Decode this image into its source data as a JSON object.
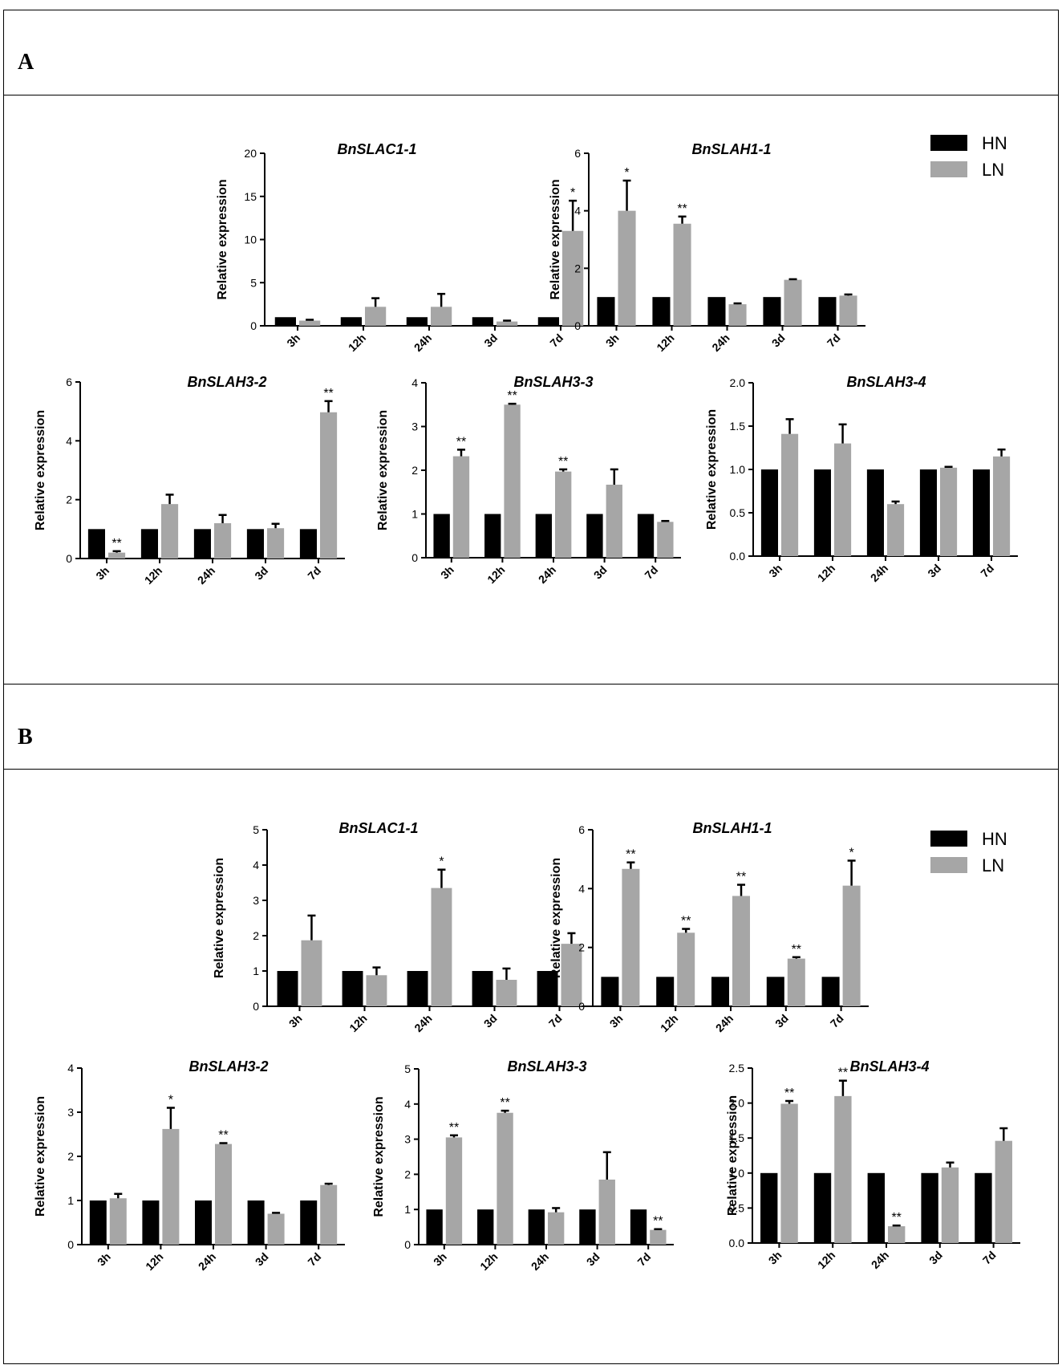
{
  "panels": [
    {
      "label": "A"
    },
    {
      "label": "B"
    }
  ],
  "legend": {
    "A": [
      {
        "name": "HN",
        "color": "#000000"
      },
      {
        "name": "LN",
        "color": "#a6a6a6"
      }
    ],
    "B": [
      {
        "name": "HN",
        "color": "#000000"
      },
      {
        "name": "LN",
        "color": "#a6a6a6"
      }
    ]
  },
  "chart_data": [
    {
      "panel": "A",
      "type": "bar",
      "title": "BnSLAC1-1",
      "xlabel": "",
      "ylabel": "Relative expression",
      "categories": [
        "3h",
        "12h",
        "24h",
        "3d",
        "7d"
      ],
      "ylim": [
        0,
        20
      ],
      "yticks": [
        "0",
        "5",
        "10",
        "15",
        "20"
      ],
      "series": [
        {
          "name": "HN",
          "color": "#000000",
          "values": [
            1,
            1,
            1,
            1,
            1
          ],
          "errors": [
            0,
            0,
            0,
            0,
            0
          ]
        },
        {
          "name": "LN",
          "color": "#a6a6a6",
          "values": [
            0.6,
            2.2,
            2.2,
            0.5,
            11.0
          ],
          "errors": [
            0.1,
            1.0,
            1.5,
            0.1,
            3.5
          ]
        }
      ],
      "annotations": [
        "",
        "",
        "",
        "",
        "*"
      ]
    },
    {
      "panel": "A",
      "type": "bar",
      "title": "BnSLAH1-1",
      "xlabel": "",
      "ylabel": "Relative expression",
      "categories": [
        "3h",
        "12h",
        "24h",
        "3d",
        "7d"
      ],
      "ylim": [
        0,
        6
      ],
      "yticks": [
        "0",
        "2",
        "4",
        "6"
      ],
      "series": [
        {
          "name": "HN",
          "color": "#000000",
          "values": [
            1,
            1,
            1,
            1,
            1
          ],
          "errors": [
            0,
            0,
            0,
            0,
            0
          ]
        },
        {
          "name": "LN",
          "color": "#a6a6a6",
          "values": [
            4.0,
            3.55,
            0.75,
            1.6,
            1.05
          ],
          "errors": [
            1.05,
            0.25,
            0.03,
            0.02,
            0.04
          ]
        }
      ],
      "annotations": [
        "*",
        "**",
        "",
        "",
        ""
      ]
    },
    {
      "panel": "A",
      "type": "bar",
      "title": "BnSLAH3-2",
      "xlabel": "",
      "ylabel": "Relative expression",
      "categories": [
        "3h",
        "12h",
        "24h",
        "3d",
        "7d"
      ],
      "ylim": [
        0,
        6
      ],
      "yticks": [
        "0",
        "2",
        "4",
        "6"
      ],
      "series": [
        {
          "name": "HN",
          "color": "#000000",
          "values": [
            1,
            1,
            1,
            1,
            1
          ],
          "errors": [
            0,
            0,
            0,
            0,
            0
          ]
        },
        {
          "name": "LN",
          "color": "#a6a6a6",
          "values": [
            0.2,
            1.85,
            1.2,
            1.03,
            4.97
          ],
          "errors": [
            0.05,
            0.32,
            0.28,
            0.15,
            0.38
          ]
        }
      ],
      "annotations": [
        "**",
        "",
        "",
        "",
        "**"
      ]
    },
    {
      "panel": "A",
      "type": "bar",
      "title": "BnSLAH3-3",
      "xlabel": "",
      "ylabel": "Relative expression",
      "categories": [
        "3h",
        "12h",
        "24h",
        "3d",
        "7d"
      ],
      "ylim": [
        0,
        4
      ],
      "yticks": [
        "0",
        "1",
        "2",
        "3",
        "4"
      ],
      "series": [
        {
          "name": "HN",
          "color": "#000000",
          "values": [
            1,
            1,
            1,
            1,
            1
          ],
          "errors": [
            0,
            0,
            0,
            0,
            0
          ]
        },
        {
          "name": "LN",
          "color": "#a6a6a6",
          "values": [
            2.32,
            3.5,
            1.97,
            1.67,
            0.82
          ],
          "errors": [
            0.15,
            0.02,
            0.05,
            0.35,
            0.02
          ]
        }
      ],
      "annotations": [
        "**",
        "**",
        "**",
        "",
        ""
      ]
    },
    {
      "panel": "A",
      "type": "bar",
      "title": "BnSLAH3-4",
      "xlabel": "",
      "ylabel": "Relative expression",
      "categories": [
        "3h",
        "12h",
        "24h",
        "3d",
        "7d"
      ],
      "ylim": [
        0,
        2.0
      ],
      "yticks": [
        "0.0",
        "0.5",
        "1.0",
        "1.5",
        "2.0"
      ],
      "series": [
        {
          "name": "HN",
          "color": "#000000",
          "values": [
            1,
            1,
            1,
            1,
            1
          ],
          "errors": [
            0,
            0,
            0,
            0,
            0
          ]
        },
        {
          "name": "LN",
          "color": "#a6a6a6",
          "values": [
            1.41,
            1.3,
            0.6,
            1.02,
            1.15
          ],
          "errors": [
            0.17,
            0.22,
            0.03,
            0.01,
            0.08
          ]
        }
      ],
      "annotations": [
        "",
        "",
        "",
        "",
        ""
      ]
    },
    {
      "panel": "B",
      "type": "bar",
      "title": "BnSLAC1-1",
      "xlabel": "",
      "ylabel": "Relative expression",
      "categories": [
        "3h",
        "12h",
        "24h",
        "3d",
        "7d"
      ],
      "ylim": [
        0,
        5
      ],
      "yticks": [
        "0",
        "1",
        "2",
        "3",
        "4",
        "5"
      ],
      "series": [
        {
          "name": "HN",
          "color": "#000000",
          "values": [
            1,
            1,
            1,
            1,
            1
          ],
          "errors": [
            0,
            0,
            0,
            0,
            0
          ]
        },
        {
          "name": "LN",
          "color": "#a6a6a6",
          "values": [
            1.87,
            0.88,
            3.35,
            0.75,
            1.77
          ],
          "errors": [
            0.7,
            0.22,
            0.52,
            0.32,
            0.3
          ]
        }
      ],
      "annotations": [
        "",
        "",
        "*",
        "",
        ""
      ]
    },
    {
      "panel": "B",
      "type": "bar",
      "title": "BnSLAH1-1",
      "xlabel": "",
      "ylabel": "Relative expression",
      "categories": [
        "3h",
        "12h",
        "24h",
        "3d",
        "7d"
      ],
      "ylim": [
        0,
        6
      ],
      "yticks": [
        "0",
        "2",
        "4",
        "6"
      ],
      "series": [
        {
          "name": "HN",
          "color": "#000000",
          "values": [
            1,
            1,
            1,
            1,
            1
          ],
          "errors": [
            0,
            0,
            0,
            0,
            0
          ]
        },
        {
          "name": "LN",
          "color": "#a6a6a6",
          "values": [
            4.67,
            2.5,
            3.75,
            1.62,
            4.1
          ],
          "errors": [
            0.22,
            0.13,
            0.38,
            0.05,
            0.85
          ]
        }
      ],
      "annotations": [
        "**",
        "**",
        "**",
        "**",
        "*"
      ]
    },
    {
      "panel": "B",
      "type": "bar",
      "title": "BnSLAH3-2",
      "xlabel": "",
      "ylabel": "Relative expression",
      "categories": [
        "3h",
        "12h",
        "24h",
        "3d",
        "7d"
      ],
      "ylim": [
        0,
        4
      ],
      "yticks": [
        "0",
        "1",
        "2",
        "3",
        "4"
      ],
      "series": [
        {
          "name": "HN",
          "color": "#000000",
          "values": [
            1,
            1,
            1,
            1,
            1
          ],
          "errors": [
            0,
            0,
            0,
            0,
            0
          ]
        },
        {
          "name": "LN",
          "color": "#a6a6a6",
          "values": [
            1.05,
            2.62,
            2.28,
            0.7,
            1.35
          ],
          "errors": [
            0.1,
            0.48,
            0.02,
            0.02,
            0.03
          ]
        }
      ],
      "annotations": [
        "",
        "*",
        "**",
        "",
        ""
      ]
    },
    {
      "panel": "B",
      "type": "bar",
      "title": "BnSLAH3-3",
      "xlabel": "",
      "ylabel": "Relative expression",
      "categories": [
        "3h",
        "12h",
        "24h",
        "3d",
        "7d"
      ],
      "ylim": [
        0,
        5
      ],
      "yticks": [
        "0",
        "1",
        "2",
        "3",
        "4",
        "5"
      ],
      "series": [
        {
          "name": "HN",
          "color": "#000000",
          "values": [
            1,
            1,
            1,
            1,
            1
          ],
          "errors": [
            0,
            0,
            0,
            0,
            0
          ]
        },
        {
          "name": "LN",
          "color": "#a6a6a6",
          "values": [
            3.05,
            3.75,
            0.92,
            1.85,
            0.42
          ],
          "errors": [
            0.06,
            0.06,
            0.12,
            0.78,
            0.02
          ]
        }
      ],
      "annotations": [
        "**",
        "**",
        "",
        "",
        "**"
      ]
    },
    {
      "panel": "B",
      "type": "bar",
      "title": "BnSLAH3-4",
      "xlabel": "",
      "ylabel": "Relative expression",
      "categories": [
        "3h",
        "12h",
        "24h",
        "3d",
        "7d"
      ],
      "ylim": [
        0,
        2.5
      ],
      "yticks": [
        "0.0",
        "0.5",
        "1.0",
        "1.5",
        "2.0",
        "2.5"
      ],
      "series": [
        {
          "name": "HN",
          "color": "#000000",
          "values": [
            1,
            1,
            1,
            1,
            1
          ],
          "errors": [
            0,
            0,
            0,
            0,
            0
          ]
        },
        {
          "name": "LN",
          "color": "#a6a6a6",
          "values": [
            1.99,
            2.1,
            0.24,
            1.08,
            1.46
          ],
          "errors": [
            0.04,
            0.22,
            0.01,
            0.07,
            0.18
          ]
        }
      ],
      "annotations": [
        "**",
        "**",
        "**",
        "",
        ""
      ]
    }
  ]
}
